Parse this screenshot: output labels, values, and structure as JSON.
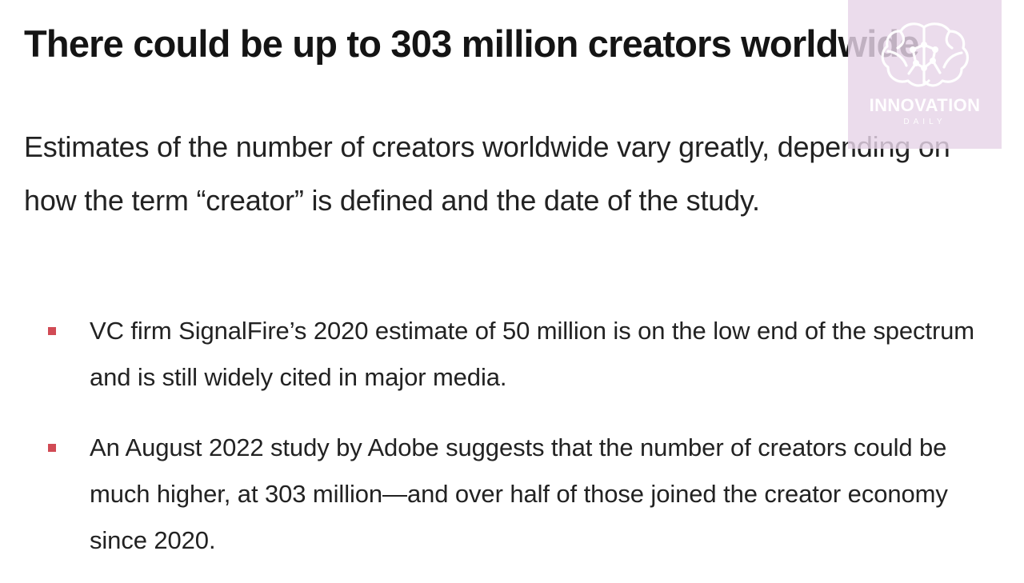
{
  "article": {
    "title": "There could be up to 303 million creators worldwide",
    "intro": "Estimates of the number of creators worldwide vary greatly, depending on how the term “creator” is defined and the date of the study.",
    "bullets": [
      {
        "text": "VC firm SignalFire’s 2020 estimate of 50 million is on the low end of the spectrum and is still widely cited in major media."
      },
      {
        "text": "An August 2022 study by Adobe suggests that the number of creators could be much higher, at 303 million—and over half of those joined the creator economy since 2020."
      }
    ]
  },
  "watermark": {
    "icon": "brain-network-icon",
    "title": "INNOVATION",
    "subtitle": "DAILY"
  },
  "colors": {
    "bullet_marker": "#d14b55",
    "watermark_background": "#e6d4e8",
    "text": "#222222"
  }
}
